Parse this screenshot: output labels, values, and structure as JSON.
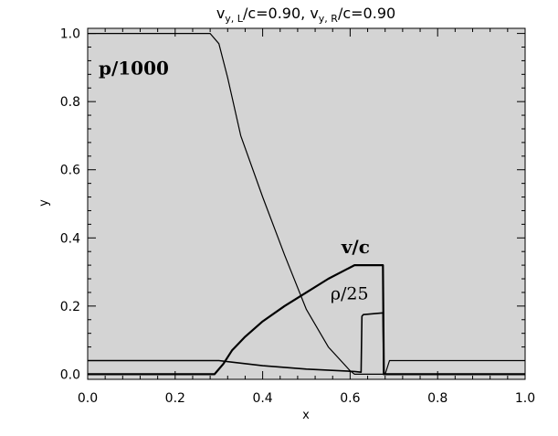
{
  "chart_data": {
    "type": "line",
    "title": {
      "pre": "v",
      "sub1": "y, L",
      "mid": "/c=0.90,  v",
      "sub2": "y, R",
      "post": "/c=0.90"
    },
    "xlabel": "x",
    "ylabel": "y",
    "xlim": [
      0.0,
      1.0
    ],
    "ylim": [
      -0.015,
      1.015
    ],
    "xticks": [
      "0.0",
      "0.2",
      "0.4",
      "0.6",
      "0.8",
      "1.0"
    ],
    "yticks": [
      "0.0",
      "0.2",
      "0.4",
      "0.6",
      "0.8",
      "1.0"
    ],
    "background": "#d4d4d4",
    "line_color": "#000000",
    "annotations": [
      {
        "text": "p/1000",
        "x": 0.025,
        "y": 0.88,
        "style": "bold"
      },
      {
        "text": "v/c",
        "x": 0.58,
        "y": 0.355,
        "style": "bold"
      },
      {
        "text": "ρ/25",
        "x": 0.555,
        "y": 0.22,
        "style": "normal"
      }
    ],
    "series": [
      {
        "id": "pressure",
        "width": 1.2,
        "x": [
          0.0,
          0.28,
          0.3,
          0.32,
          0.35,
          0.4,
          0.45,
          0.5,
          0.55,
          0.6,
          0.61,
          0.63,
          0.67,
          0.68,
          0.69,
          1.0
        ],
        "y": [
          1.0,
          1.0,
          0.97,
          0.87,
          0.7,
          0.52,
          0.35,
          0.19,
          0.08,
          0.01,
          0.0,
          0.0,
          0.0,
          0.0,
          0.04,
          0.04
        ]
      },
      {
        "id": "velocity",
        "width": 2.2,
        "x": [
          0.0,
          0.29,
          0.31,
          0.33,
          0.36,
          0.4,
          0.45,
          0.5,
          0.55,
          0.61,
          0.66,
          0.675,
          0.677,
          1.0
        ],
        "y": [
          0.0,
          0.0,
          0.03,
          0.07,
          0.11,
          0.155,
          0.2,
          0.24,
          0.28,
          0.32,
          0.32,
          0.32,
          0.0,
          0.0
        ]
      },
      {
        "id": "density",
        "width": 1.6,
        "x": [
          0.0,
          0.28,
          0.3,
          0.4,
          0.5,
          0.58,
          0.61,
          0.625,
          0.627,
          0.63,
          0.675,
          0.677,
          1.0
        ],
        "y": [
          0.04,
          0.04,
          0.04,
          0.025,
          0.015,
          0.01,
          0.008,
          0.006,
          0.17,
          0.175,
          0.18,
          0.0,
          0.0
        ]
      }
    ]
  }
}
